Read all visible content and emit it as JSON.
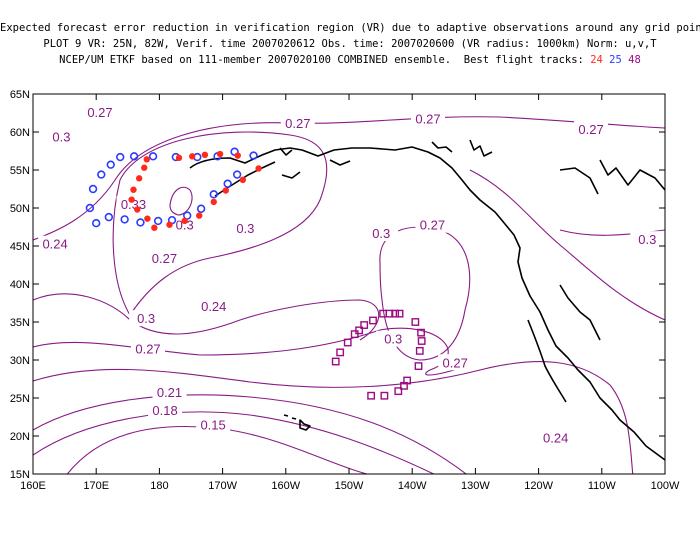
{
  "header": {
    "line1": "Expected forecast error reduction in verification region (VR) due to adaptive observations around any grid point.",
    "line2": "PLOT 9 VR: 25N, 82W, Verif. time 2007020612 Obs. time: 2007020600 (VR radius: 1000km) Norm: u,v,T",
    "line3_prefix": "NCEP/UM ETKF based on 111-member 2007020100 COMBINED ensemble.  Best flight tracks: ",
    "tracks": [
      {
        "label": "24",
        "color": "#ff2a1a"
      },
      {
        "label": "25",
        "color": "#2a3cff"
      },
      {
        "label": "48",
        "color": "#9b0b83"
      }
    ]
  },
  "map": {
    "lon_range": [
      160,
      260
    ],
    "lat_range": [
      15,
      65
    ],
    "x_tick_labels": [
      "160E",
      "170E",
      "180",
      "170W",
      "160W",
      "150W",
      "140W",
      "130W",
      "120W",
      "110W",
      "100W"
    ],
    "y_tick_labels": [
      "15N",
      "20N",
      "25N",
      "30N",
      "35N",
      "40N",
      "45N",
      "50N",
      "55N",
      "60N",
      "65N"
    ],
    "contour_color": "#8a1a86",
    "coast_color": "#000000",
    "contour_labels": [
      {
        "text": "0.3",
        "lon": 164.5,
        "lat": 59.4
      },
      {
        "text": "0.27",
        "lon": 170.6,
        "lat": 62.6
      },
      {
        "text": "0.27",
        "lon": 201.9,
        "lat": 61.2
      },
      {
        "text": "0.27",
        "lon": 222.5,
        "lat": 61.8
      },
      {
        "text": "0.27",
        "lon": 248.3,
        "lat": 60.4
      },
      {
        "text": "0.33",
        "lon": 175.9,
        "lat": 50.5
      },
      {
        "text": "0.3",
        "lon": 184.0,
        "lat": 47.8
      },
      {
        "text": "0.3",
        "lon": 193.6,
        "lat": 47.4
      },
      {
        "text": "0.27",
        "lon": 223.2,
        "lat": 47.8
      },
      {
        "text": "0.3",
        "lon": 215.1,
        "lat": 46.7
      },
      {
        "text": "0.3",
        "lon": 257.2,
        "lat": 45.9
      },
      {
        "text": "0.24",
        "lon": 163.5,
        "lat": 45.3
      },
      {
        "text": "0.27",
        "lon": 180.8,
        "lat": 43.4
      },
      {
        "text": "0.24",
        "lon": 188.6,
        "lat": 37.1
      },
      {
        "text": "0.3",
        "lon": 177.9,
        "lat": 35.5
      },
      {
        "text": "0.27",
        "lon": 178.2,
        "lat": 31.5
      },
      {
        "text": "0.3",
        "lon": 217.0,
        "lat": 32.8
      },
      {
        "text": "0.27",
        "lon": 226.8,
        "lat": 29.7
      },
      {
        "text": "0.21",
        "lon": 181.6,
        "lat": 25.8
      },
      {
        "text": "0.18",
        "lon": 180.9,
        "lat": 23.4
      },
      {
        "text": "0.15",
        "lon": 188.5,
        "lat": 21.5
      },
      {
        "text": "0.24",
        "lon": 242.7,
        "lat": 19.8
      }
    ],
    "track24_points": [
      [
        175.9,
        52.4
      ],
      [
        176.8,
        53.9
      ],
      [
        177.6,
        55.3
      ],
      [
        178.0,
        56.4
      ],
      [
        175.6,
        51.1
      ],
      [
        176.5,
        49.8
      ],
      [
        178.1,
        48.6
      ],
      [
        179.2,
        47.4
      ],
      [
        181.6,
        47.8
      ],
      [
        184.0,
        48.3
      ],
      [
        186.3,
        49.0
      ],
      [
        188.6,
        50.8
      ],
      [
        190.5,
        52.3
      ],
      [
        193.2,
        53.7
      ],
      [
        195.7,
        55.2
      ],
      [
        192.4,
        56.9
      ],
      [
        189.6,
        57.1
      ],
      [
        187.2,
        57.0
      ],
      [
        185.2,
        56.8
      ],
      [
        183.1,
        56.6
      ]
    ],
    "track25_points": [
      [
        170.0,
        48.0
      ],
      [
        169.0,
        50.0
      ],
      [
        169.5,
        52.5
      ],
      [
        170.8,
        54.4
      ],
      [
        172.3,
        55.7
      ],
      [
        173.8,
        56.7
      ],
      [
        176.0,
        56.8
      ],
      [
        179.0,
        56.8
      ],
      [
        182.6,
        56.7
      ],
      [
        186.0,
        56.7
      ],
      [
        189.2,
        56.8
      ],
      [
        191.9,
        57.4
      ],
      [
        194.9,
        56.9
      ],
      [
        192.3,
        54.4
      ],
      [
        190.8,
        53.2
      ],
      [
        188.6,
        51.8
      ],
      [
        186.6,
        49.9
      ],
      [
        184.4,
        49.0
      ],
      [
        182.0,
        48.4
      ],
      [
        179.8,
        48.3
      ],
      [
        177.0,
        48.1
      ],
      [
        174.5,
        48.5
      ],
      [
        172.0,
        48.8
      ]
    ],
    "track48_points": [
      [
        207.9,
        29.8
      ],
      [
        208.6,
        31.0
      ],
      [
        209.8,
        32.3
      ],
      [
        210.9,
        33.4
      ],
      [
        211.6,
        33.9
      ],
      [
        212.4,
        34.6
      ],
      [
        213.8,
        35.2
      ],
      [
        215.4,
        36.1
      ],
      [
        216.4,
        36.1
      ],
      [
        217.3,
        36.1
      ],
      [
        218.0,
        36.1
      ],
      [
        220.5,
        35.0
      ],
      [
        221.4,
        33.6
      ],
      [
        221.5,
        32.5
      ],
      [
        221.2,
        31.2
      ],
      [
        221.0,
        29.2
      ],
      [
        219.2,
        27.3
      ],
      [
        218.7,
        26.6
      ],
      [
        217.8,
        25.9
      ],
      [
        215.6,
        25.3
      ],
      [
        213.5,
        25.3
      ]
    ]
  }
}
